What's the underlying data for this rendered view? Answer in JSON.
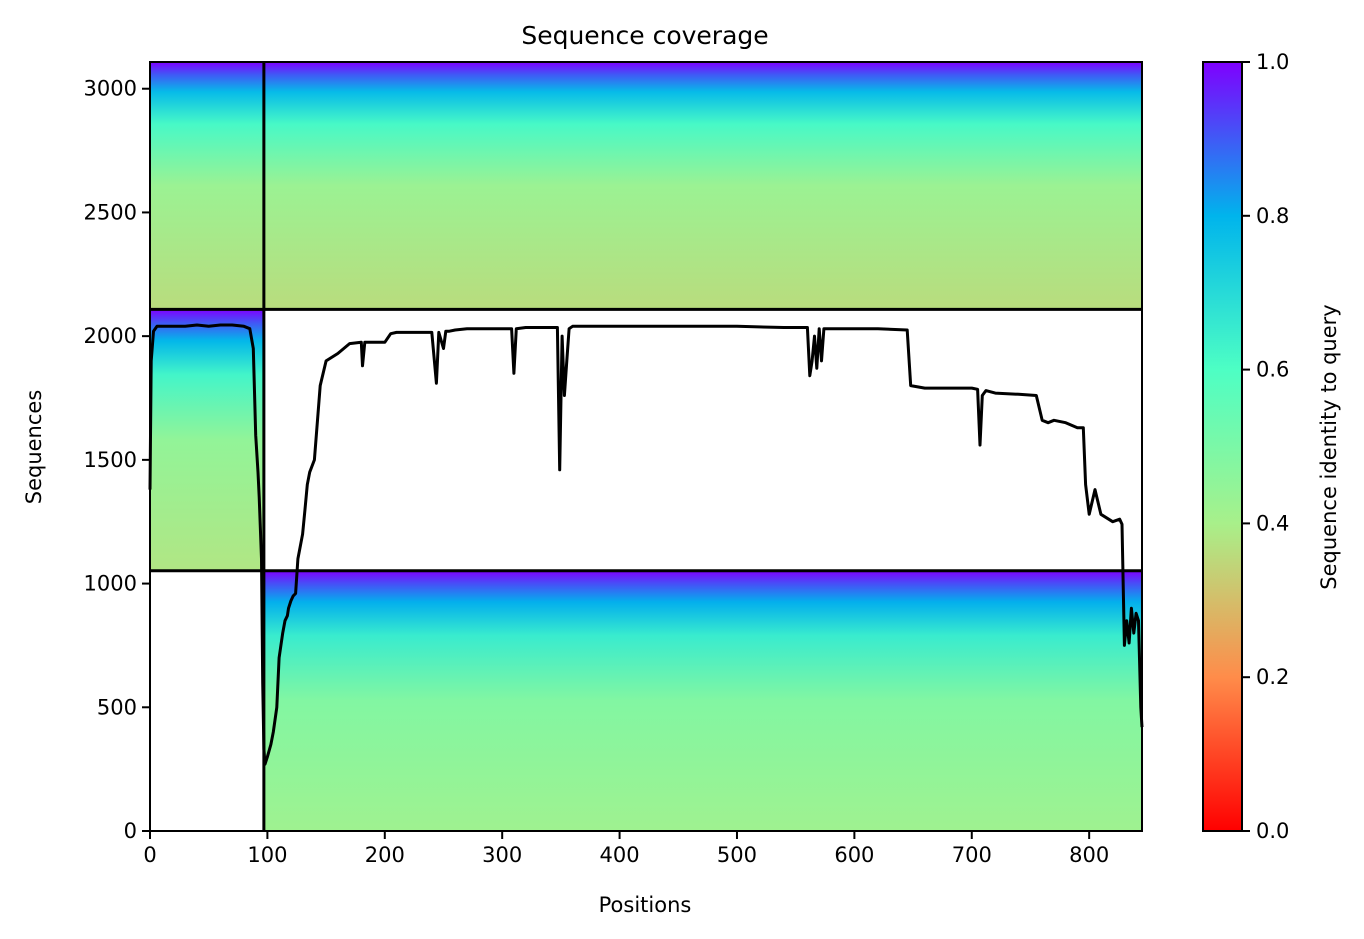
{
  "chart_data": {
    "type": "heatmap",
    "title": "Sequence coverage",
    "xlabel": "Positions",
    "ylabel": "Sequences",
    "xlim": [
      0,
      845
    ],
    "ylim": [
      0,
      3108
    ],
    "xticks": [
      0,
      100,
      200,
      300,
      400,
      500,
      600,
      700,
      800
    ],
    "yticks": [
      0,
      500,
      1000,
      1500,
      2000,
      2500,
      3000
    ],
    "colorbar": {
      "label": "Sequence identity to query",
      "range": [
        0.0,
        1.0
      ],
      "ticks": [
        "0.0",
        "0.2",
        "0.4",
        "0.6",
        "0.8",
        "1.0"
      ],
      "colormap": "rainbow",
      "colors": [
        "#ff0000",
        "#ff8c4a",
        "#a8f08a",
        "#4dffc4",
        "#00b4ec",
        "#7f00ff"
      ]
    },
    "blocks": [
      {
        "x": [
          0,
          97
        ],
        "y": [
          1052,
          2108
        ],
        "identity_bottom": 0.38,
        "identity_top": 1.0
      },
      {
        "x": [
          0,
          845
        ],
        "y": [
          2108,
          3108
        ],
        "identity_bottom": 0.36,
        "identity_top": 1.0
      },
      {
        "x": [
          97,
          845
        ],
        "y": [
          0,
          1052
        ],
        "identity_bottom": 0.42,
        "identity_top": 1.0
      }
    ],
    "block_boundaries": {
      "vertical_x": 97,
      "horizontal_y": [
        1052,
        2108
      ]
    },
    "coverage_line": {
      "color": "#000000",
      "x": [
        0,
        1,
        3,
        6,
        10,
        20,
        30,
        40,
        50,
        60,
        70,
        80,
        85,
        88,
        90,
        92,
        93,
        95,
        96,
        97,
        98,
        100,
        103,
        105,
        108,
        110,
        113,
        115,
        117,
        118,
        120,
        122,
        124,
        126,
        130,
        132,
        134,
        136,
        140,
        145,
        150,
        160,
        170,
        180,
        181,
        183,
        200,
        205,
        210,
        220,
        240,
        244,
        246,
        250,
        252,
        255,
        260,
        270,
        280,
        300,
        308,
        310,
        312,
        320,
        340,
        347,
        349,
        351,
        353,
        355,
        357,
        360,
        380,
        400,
        430,
        460,
        500,
        540,
        560,
        562,
        564,
        566,
        568,
        570,
        572,
        574,
        580,
        600,
        620,
        645,
        648,
        660,
        680,
        700,
        705,
        707,
        709,
        712,
        720,
        740,
        755,
        760,
        765,
        770,
        780,
        790,
        795,
        797,
        800,
        805,
        810,
        820,
        826,
        828,
        830,
        832,
        834,
        836,
        838,
        840,
        842,
        844,
        845
      ],
      "y": [
        1380,
        1900,
        2020,
        2040,
        2040,
        2040,
        2040,
        2045,
        2040,
        2045,
        2045,
        2040,
        2030,
        1950,
        1600,
        1450,
        1350,
        1100,
        600,
        330,
        270,
        300,
        350,
        400,
        500,
        700,
        800,
        850,
        870,
        900,
        930,
        950,
        960,
        1100,
        1200,
        1300,
        1400,
        1450,
        1500,
        1800,
        1900,
        1930,
        1970,
        1975,
        1880,
        1975,
        1975,
        2010,
        2015,
        2015,
        2015,
        1810,
        2015,
        1950,
        2020,
        2020,
        2025,
        2030,
        2030,
        2030,
        2030,
        1850,
        2030,
        2035,
        2035,
        2035,
        1460,
        2000,
        1760,
        1900,
        2030,
        2040,
        2040,
        2040,
        2040,
        2040,
        2040,
        2035,
        2035,
        1840,
        1900,
        2000,
        1870,
        2030,
        1900,
        2030,
        2030,
        2030,
        2030,
        2025,
        1800,
        1790,
        1790,
        1790,
        1785,
        1560,
        1760,
        1780,
        1770,
        1765,
        1760,
        1660,
        1650,
        1660,
        1650,
        1630,
        1630,
        1400,
        1280,
        1380,
        1280,
        1250,
        1260,
        1240,
        750,
        850,
        760,
        900,
        800,
        880,
        850,
        500,
        420
      ]
    }
  }
}
